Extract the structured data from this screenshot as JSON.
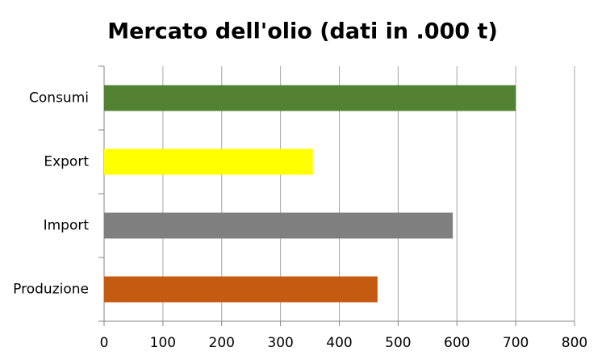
{
  "chart_data": {
    "type": "barh",
    "title": "Mercato dell'olio (dati in .000 t)",
    "categories": [
      "Consumi",
      "Export",
      "Import",
      "Produzione"
    ],
    "values": [
      700,
      355,
      593,
      465
    ],
    "colors": [
      "#548235",
      "#ffff00",
      "#7f7f7f",
      "#c55a11"
    ],
    "xlim": [
      0,
      800
    ],
    "xticks": [
      0,
      100,
      200,
      300,
      400,
      500,
      600,
      700,
      800
    ],
    "grid": true
  }
}
